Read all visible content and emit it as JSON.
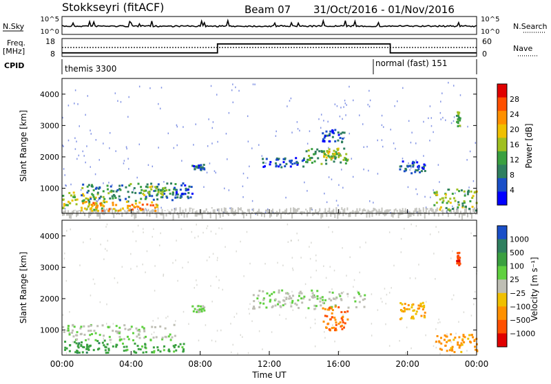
{
  "header": {
    "station": "Stokkseyri (fitACF)",
    "beam": "Beam 07",
    "date_range": "31/Oct/2016 - 01/Nov/2016"
  },
  "top_panels": {
    "nsky_label": "N.Sky",
    "nsky_ticks": [
      "10^5",
      "10^0"
    ],
    "nsearch_label": "N.Search",
    "nsearch_ticks": [
      "10^5",
      "10^0"
    ],
    "freq_label": "Freq.",
    "freq_unit": "[MHz]",
    "freq_ticks": [
      "18",
      "8"
    ],
    "nave_label": "Nave",
    "nave_ticks": [
      "60",
      "0"
    ],
    "cpid_label": "CPID",
    "cpid_modes": [
      {
        "name": "themis 3300",
        "start_hour": 0,
        "end_hour": 18
      },
      {
        "name": "normal (fast) 151",
        "start_hour": 18,
        "end_hour": 24
      }
    ],
    "freq_steps": [
      {
        "start_hour": 0,
        "end_hour": 9,
        "level": 0.2
      },
      {
        "start_hour": 9,
        "end_hour": 19,
        "level": 0.7
      },
      {
        "start_hour": 19,
        "end_hour": 24,
        "level": 0.2
      }
    ]
  },
  "chart_data": [
    {
      "type": "heatmap",
      "title": "Power",
      "ylabel": "Slant Range [km]",
      "xlabel": "Time UT",
      "xlim": [
        0,
        24
      ],
      "ylim": [
        200,
        4500
      ],
      "y_ticks": [
        "1000",
        "2000",
        "3000",
        "4000"
      ],
      "x_ticks": [
        "00:00",
        "04:00",
        "08:00",
        "12:00",
        "16:00",
        "20:00",
        "00:00"
      ],
      "colorbar_label": "Power [dB]",
      "colorbar_ticks": [
        "28",
        "24",
        "20",
        "16",
        "12",
        "8",
        "4"
      ],
      "colorbar_colors": [
        "#0000ff",
        "#1a4fc8",
        "#2f7f5f",
        "#3aa040",
        "#a0c020",
        "#f0c000",
        "#ff9000",
        "#ff5000",
        "#e00000"
      ],
      "regions": [
        {
          "t0": 0.0,
          "t1": 2.5,
          "r0": 300,
          "r1": 900,
          "value": 16
        },
        {
          "t0": 1.0,
          "t1": 6.5,
          "r0": 600,
          "r1": 1200,
          "value": 10
        },
        {
          "t0": 1.0,
          "t1": 5.5,
          "r0": 300,
          "r1": 600,
          "value": 22
        },
        {
          "t0": 4.5,
          "t1": 6.0,
          "r0": 800,
          "r1": 1100,
          "value": 14
        },
        {
          "t0": 6.5,
          "t1": 7.5,
          "r0": 700,
          "r1": 1200,
          "value": 6
        },
        {
          "t0": 7.5,
          "t1": 8.2,
          "r0": 1600,
          "r1": 1800,
          "value": 6
        },
        {
          "t0": 11.5,
          "t1": 14.0,
          "r0": 1700,
          "r1": 2000,
          "value": 6
        },
        {
          "t0": 14.0,
          "t1": 16.5,
          "r0": 1800,
          "r1": 2300,
          "value": 12
        },
        {
          "t0": 15.0,
          "t1": 16.0,
          "r0": 2000,
          "r1": 2300,
          "value": 18
        },
        {
          "t0": 15.0,
          "t1": 16.3,
          "r0": 2500,
          "r1": 2900,
          "value": 6
        },
        {
          "t0": 19.5,
          "t1": 21.0,
          "r0": 1500,
          "r1": 1900,
          "value": 6
        },
        {
          "t0": 21.5,
          "t1": 24.0,
          "r0": 300,
          "r1": 1000,
          "value": 14
        },
        {
          "t0": 22.8,
          "t1": 23.0,
          "r0": 3000,
          "r1": 3500,
          "value": 12
        }
      ],
      "ground_scatter": [
        0,
        24,
        200,
        400
      ]
    },
    {
      "type": "heatmap",
      "title": "Velocity",
      "ylabel": "Slant Range [km]",
      "xlabel": "Time UT",
      "xlim": [
        0,
        24
      ],
      "ylim": [
        200,
        4500
      ],
      "y_ticks": [
        "1000",
        "2000",
        "3000",
        "4000"
      ],
      "x_ticks": [
        "00:00",
        "04:00",
        "08:00",
        "12:00",
        "16:00",
        "20:00",
        "00:00"
      ],
      "colorbar_label": "Velocity [m s⁻¹]",
      "colorbar_ticks": [
        "1000",
        "500",
        "100",
        "25",
        "−25",
        "−100",
        "−500",
        "−1000"
      ],
      "colorbar_colors": [
        "#e00000",
        "#ff5000",
        "#ff9000",
        "#f0c000",
        "#bebeb4",
        "#60d040",
        "#3aa040",
        "#2f7f5f",
        "#1a4fc8"
      ],
      "regions": [
        {
          "t0": 0.0,
          "t1": 6.5,
          "r0": 700,
          "r1": 1200,
          "value": 0
        },
        {
          "t0": 0.0,
          "t1": 2.5,
          "r0": 300,
          "r1": 700,
          "value": 70
        },
        {
          "t0": 2.5,
          "t1": 7.0,
          "r0": 300,
          "r1": 600,
          "value": 50
        },
        {
          "t0": 7.5,
          "t1": 8.2,
          "r0": 1600,
          "r1": 1800,
          "value": 0
        },
        {
          "t0": 11.0,
          "t1": 17.5,
          "r0": 1700,
          "r1": 2300,
          "value": 0
        },
        {
          "t0": 15.0,
          "t1": 16.5,
          "r0": 1000,
          "r1": 1800,
          "value": -300
        },
        {
          "t0": 19.5,
          "t1": 21.0,
          "r0": 1300,
          "r1": 1900,
          "value": -100
        },
        {
          "t0": 21.5,
          "t1": 24.0,
          "r0": 300,
          "r1": 900,
          "value": -150
        },
        {
          "t0": 22.8,
          "t1": 23.0,
          "r0": 3100,
          "r1": 3500,
          "value": -600
        }
      ]
    }
  ]
}
